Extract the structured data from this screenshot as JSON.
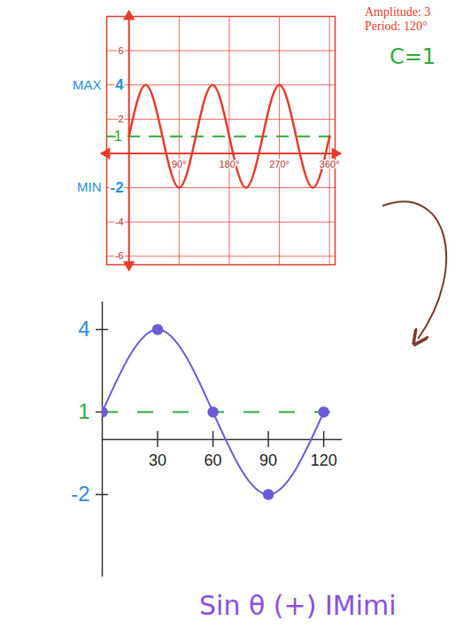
{
  "chart_data": [
    {
      "type": "line",
      "x": [
        0,
        30,
        60,
        90,
        120,
        150,
        180,
        210,
        240,
        270,
        300,
        330,
        360
      ],
      "values": [
        1,
        4,
        1,
        -2,
        1,
        4,
        1,
        -2,
        1,
        4,
        1,
        -2,
        1
      ],
      "color": "#e53b2c",
      "line_style": "solid",
      "xlim": [
        -40,
        370
      ],
      "xticks": [
        {
          "value": 90,
          "label": "90°"
        },
        {
          "value": 180,
          "label": "180°"
        },
        {
          "value": 270,
          "label": "270°"
        },
        {
          "value": 360,
          "label": "360°"
        }
      ],
      "ylim": [
        -6.5,
        8
      ],
      "yticks": [
        6,
        4,
        2,
        -2,
        -4,
        -6
      ],
      "grid": true,
      "midline": 1,
      "annotations": [
        {
          "text": "MAX",
          "y": 4
        },
        {
          "text": "MIN",
          "y": -2
        }
      ],
      "notes": [
        "Amplitude: 3",
        "Period: 120°"
      ],
      "constant_label": "C=1"
    },
    {
      "type": "line",
      "x": [
        0,
        30,
        60,
        90,
        120
      ],
      "values": [
        1,
        4,
        1,
        -2,
        1
      ],
      "color": "#6a5bd6",
      "marker": "circle",
      "line_style": "solid",
      "xlim": [
        0,
        130
      ],
      "xticks": [
        30,
        60,
        90,
        120
      ],
      "ylim": [
        -5,
        5
      ],
      "yticks": [
        4,
        1,
        -2
      ],
      "midline": 1,
      "caption": "Sin θ (+) IMimi"
    }
  ]
}
